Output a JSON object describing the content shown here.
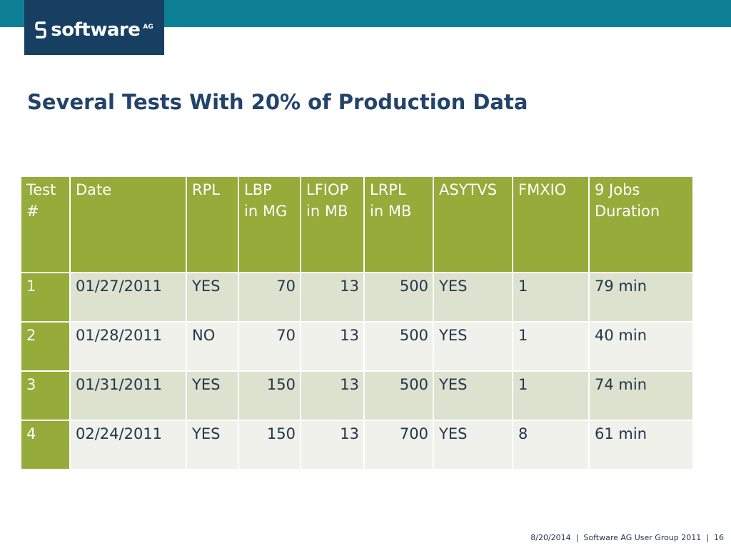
{
  "brand": {
    "logo_text": "software",
    "logo_suffix": "AG",
    "colors": {
      "band": "#0e8096",
      "logo_bg": "#163f62",
      "header": "#95ab3a",
      "title": "#22436a"
    }
  },
  "slide": {
    "title": "Several Tests With 20% of Production Data"
  },
  "table": {
    "headers": [
      [
        "Test",
        "#"
      ],
      [
        "Date"
      ],
      [
        "RPL"
      ],
      [
        "LBP",
        "in MG"
      ],
      [
        "LFIOP",
        "in MB"
      ],
      [
        "LRPL",
        "in MB"
      ],
      [
        "ASYTVS"
      ],
      [
        "FMXIO"
      ],
      [
        "9 Jobs",
        "Duration"
      ]
    ],
    "rows": [
      {
        "test": "1",
        "date": "01/27/2011",
        "rpl": "YES",
        "lbp": "70",
        "lfiop": "13",
        "lrpl": "500",
        "asytvs": "YES",
        "fmxio": "1",
        "duration": "79 min"
      },
      {
        "test": "2",
        "date": "01/28/2011",
        "rpl": "NO",
        "lbp": "70",
        "lfiop": "13",
        "lrpl": "500",
        "asytvs": "YES",
        "fmxio": "1",
        "duration": "40 min"
      },
      {
        "test": "3",
        "date": "01/31/2011",
        "rpl": "YES",
        "lbp": "150",
        "lfiop": "13",
        "lrpl": "500",
        "asytvs": "YES",
        "fmxio": "1",
        "duration": "74 min"
      },
      {
        "test": "4",
        "date": "02/24/2011",
        "rpl": "YES",
        "lbp": "150",
        "lfiop": "13",
        "lrpl": "700",
        "asytvs": "YES",
        "fmxio": "8",
        "duration": "61 min"
      }
    ]
  },
  "footer": {
    "date": "8/20/2014",
    "event": "Software AG User Group 2011",
    "page": "16",
    "separator": "|"
  }
}
